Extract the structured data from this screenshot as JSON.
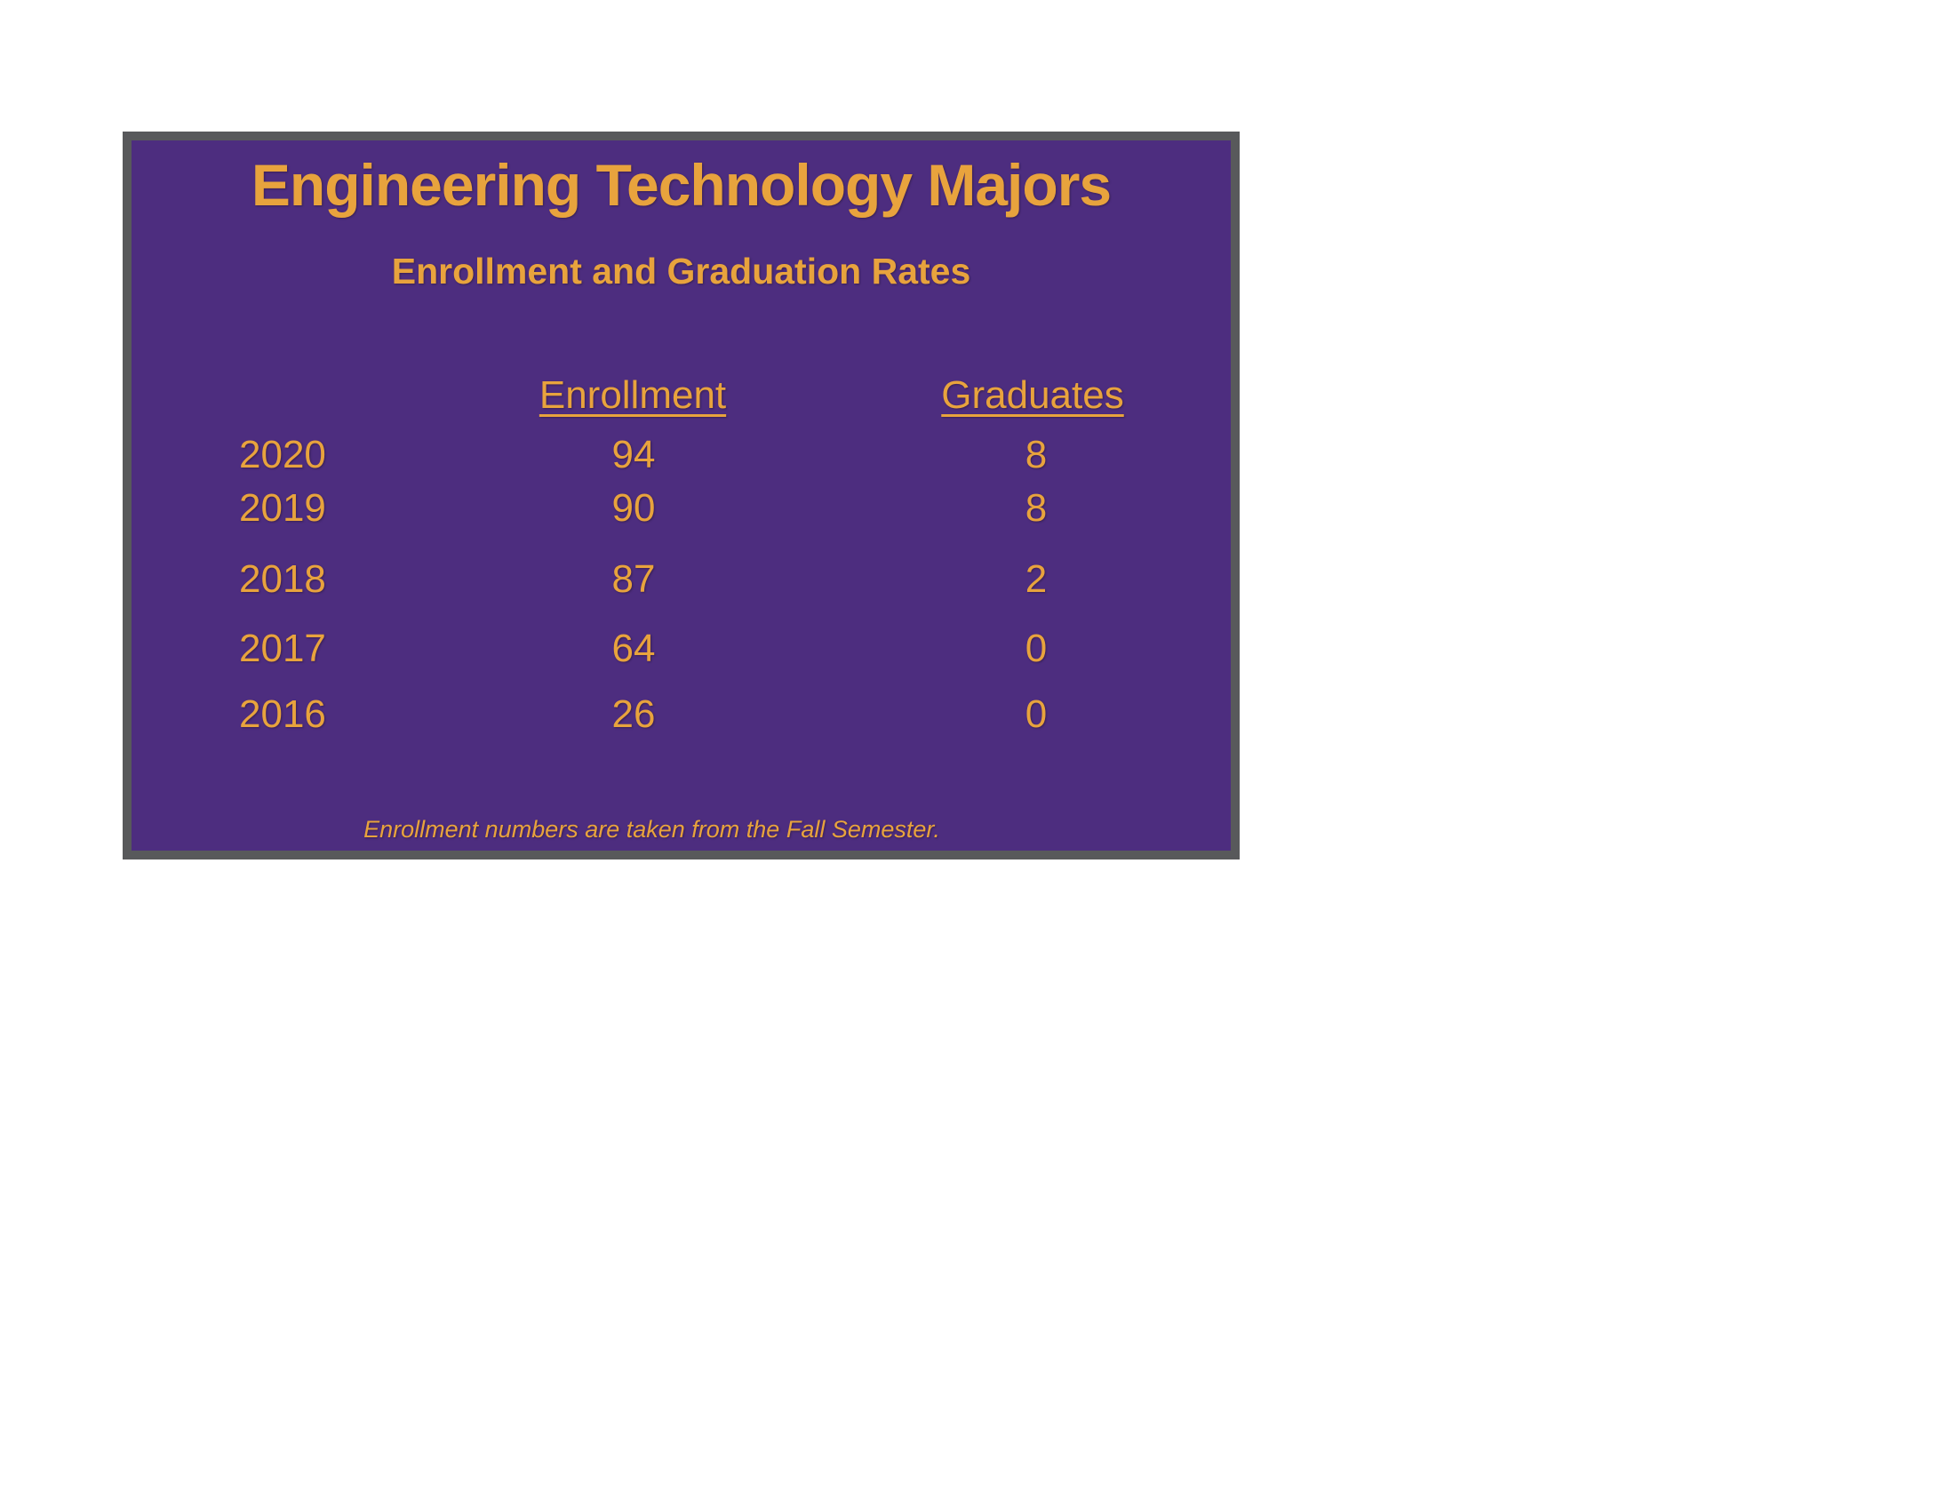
{
  "colors": {
    "page_background": "#FFFFFF",
    "panel_background": "#4D2D7F",
    "panel_border": "#58595B",
    "text_gold": "#E8A33D"
  },
  "panel": {
    "title": "Engineering Technology Majors",
    "subtitle": "Enrollment and Graduation Rates",
    "table": {
      "columns": [
        "Enrollment",
        "Graduates"
      ],
      "rows": [
        {
          "year": "2020",
          "enrollment": "94",
          "graduates": "8"
        },
        {
          "year": "2019",
          "enrollment": "90",
          "graduates": "8"
        },
        {
          "year": "2018",
          "enrollment": "87",
          "graduates": "2"
        },
        {
          "year": "2017",
          "enrollment": "64",
          "graduates": "0"
        },
        {
          "year": "2016",
          "enrollment": "26",
          "graduates": "0"
        }
      ]
    },
    "footnote": "Enrollment numbers are taken from the Fall Semester."
  },
  "chart_data": {
    "type": "table",
    "title": "Engineering Technology Majors",
    "subtitle": "Enrollment and Graduation Rates",
    "categories": [
      "2020",
      "2019",
      "2018",
      "2017",
      "2016"
    ],
    "series": [
      {
        "name": "Enrollment",
        "values": [
          94,
          90,
          87,
          64,
          26
        ]
      },
      {
        "name": "Graduates",
        "values": [
          8,
          8,
          2,
          0,
          0
        ]
      }
    ],
    "note": "Enrollment numbers are taken from the Fall Semester."
  }
}
